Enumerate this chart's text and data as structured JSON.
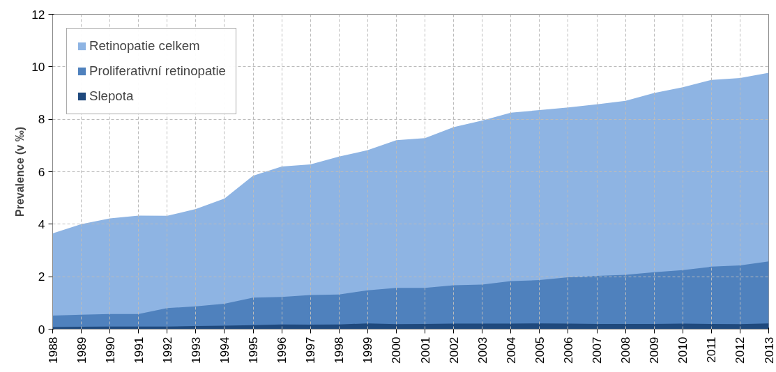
{
  "chart_data": {
    "type": "area",
    "ylabel": "Prevalence (v ‰)",
    "x": [
      1988,
      1989,
      1990,
      1991,
      1992,
      1993,
      1994,
      1995,
      1996,
      1997,
      1998,
      1999,
      2000,
      2001,
      2002,
      2003,
      2004,
      2005,
      2006,
      2007,
      2008,
      2009,
      2010,
      2011,
      2012,
      2013
    ],
    "series": [
      {
        "name": "Retinopatie celkem",
        "color": "#8eb4e3",
        "values": [
          3.65,
          4.0,
          4.22,
          4.33,
          4.32,
          4.58,
          4.98,
          5.85,
          6.2,
          6.28,
          6.58,
          6.82,
          7.2,
          7.28,
          7.7,
          7.95,
          8.25,
          8.35,
          8.45,
          8.57,
          8.7,
          9.0,
          9.22,
          9.5,
          9.57,
          9.77
        ]
      },
      {
        "name": "Proliferativní retinopatie",
        "color": "#4f81bd",
        "values": [
          0.52,
          0.55,
          0.58,
          0.58,
          0.8,
          0.87,
          0.97,
          1.2,
          1.23,
          1.3,
          1.32,
          1.48,
          1.57,
          1.57,
          1.67,
          1.7,
          1.83,
          1.87,
          1.98,
          2.03,
          2.07,
          2.17,
          2.25,
          2.38,
          2.43,
          2.58
        ]
      },
      {
        "name": "Slepota",
        "color": "#1f497d",
        "values": [
          0.08,
          0.09,
          0.1,
          0.1,
          0.1,
          0.12,
          0.13,
          0.15,
          0.18,
          0.17,
          0.18,
          0.22,
          0.19,
          0.2,
          0.21,
          0.21,
          0.21,
          0.22,
          0.21,
          0.2,
          0.2,
          0.2,
          0.21,
          0.2,
          0.19,
          0.22
        ]
      }
    ],
    "xlim": [
      1988,
      2013
    ],
    "ylim": [
      0,
      12
    ],
    "xticks": [
      1988,
      1989,
      1990,
      1991,
      1992,
      1993,
      1994,
      1995,
      1996,
      1997,
      1998,
      1999,
      2000,
      2001,
      2002,
      2003,
      2004,
      2005,
      2006,
      2007,
      2008,
      2009,
      2010,
      2011,
      2012,
      2013
    ],
    "yticks": [
      0,
      2,
      4,
      6,
      8,
      10,
      12
    ],
    "grid": true,
    "legend": "top left"
  }
}
